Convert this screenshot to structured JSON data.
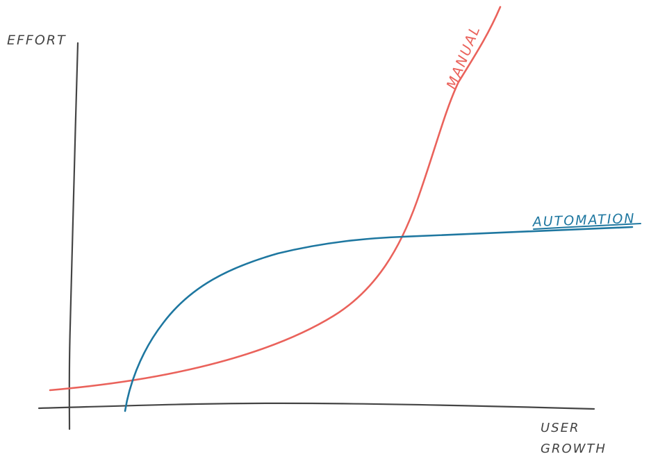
{
  "axes": {
    "y_label": "EFFORT",
    "x_label_lines": [
      "USER",
      "GROWTH"
    ]
  },
  "curves": [
    {
      "label": "MANUAL",
      "color": "#ea625b"
    },
    {
      "label": "AUTOMATION",
      "color": "#1e77a0"
    }
  ]
}
